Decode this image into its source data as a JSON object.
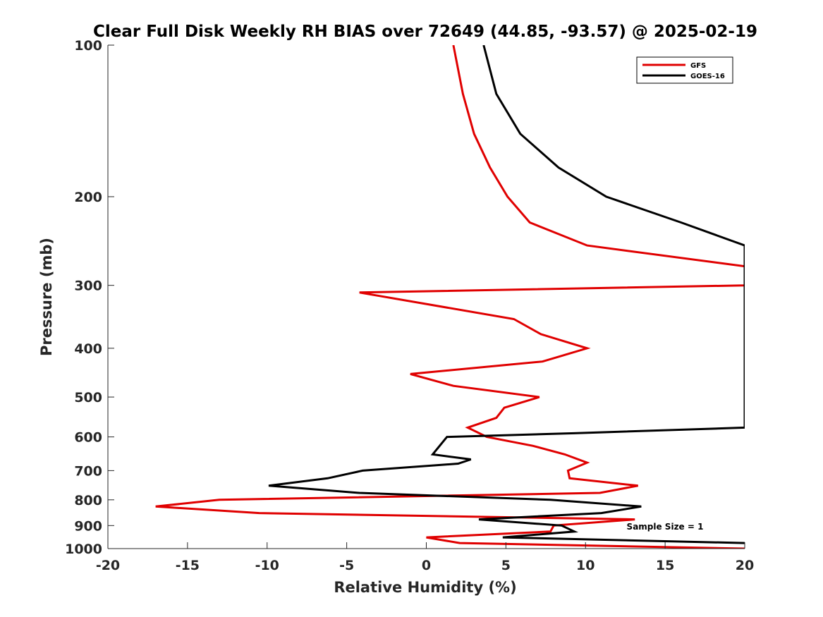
{
  "chart_data": {
    "type": "line",
    "title": "Clear Full Disk Weekly RH BIAS over 72649 (44.85, -93.57) @ 2025-02-19",
    "xlabel": "Relative Humidity (%)",
    "ylabel": "Pressure (mb)",
    "xlim": [
      -20,
      20
    ],
    "ylim": [
      1000,
      100
    ],
    "yscale": "log",
    "x_ticks": [
      "-20",
      "-15",
      "-10",
      "-5",
      "0",
      "5",
      "10",
      "15",
      "20"
    ],
    "y_ticks": [
      "100",
      "200",
      "300",
      "400",
      "500",
      "600",
      "700",
      "800",
      "900",
      "1000"
    ],
    "grid": false,
    "legend_position": "top-right",
    "annotation": "Sample Size = 1",
    "series": [
      {
        "name": "GFS",
        "color": "#e00000",
        "points": [
          [
            1.7,
            100
          ],
          [
            2.3,
            125
          ],
          [
            3.0,
            150
          ],
          [
            4.0,
            175
          ],
          [
            5.1,
            200
          ],
          [
            6.5,
            225
          ],
          [
            10.1,
            250
          ],
          [
            20.0,
            275
          ],
          [
            20.0,
            300
          ],
          [
            -4.2,
            310
          ],
          [
            5.5,
            350
          ],
          [
            7.2,
            375
          ],
          [
            10.1,
            400
          ],
          [
            7.3,
            425
          ],
          [
            -1.0,
            450
          ],
          [
            1.7,
            475
          ],
          [
            7.1,
            500
          ],
          [
            4.9,
            525
          ],
          [
            4.4,
            550
          ],
          [
            2.6,
            575
          ],
          [
            3.8,
            600
          ],
          [
            6.7,
            625
          ],
          [
            8.7,
            650
          ],
          [
            10.1,
            675
          ],
          [
            8.9,
            700
          ],
          [
            9.0,
            725
          ],
          [
            13.3,
            750
          ],
          [
            10.9,
            775
          ],
          [
            -13.0,
            800
          ],
          [
            -17.0,
            825
          ],
          [
            -10.5,
            850
          ],
          [
            13.1,
            875
          ],
          [
            8.0,
            900
          ],
          [
            7.8,
            925
          ],
          [
            0.0,
            950
          ],
          [
            2.1,
            975
          ],
          [
            20.0,
            1000
          ]
        ]
      },
      {
        "name": "GOES-16",
        "color": "#000000",
        "points": [
          [
            3.6,
            100
          ],
          [
            4.4,
            125
          ],
          [
            5.9,
            150
          ],
          [
            8.3,
            175
          ],
          [
            11.3,
            200
          ],
          [
            16.0,
            225
          ],
          [
            20.0,
            250
          ],
          [
            20.0,
            575
          ],
          [
            9.3,
            590
          ],
          [
            1.3,
            600
          ],
          [
            0.4,
            650
          ],
          [
            2.8,
            665
          ],
          [
            2.0,
            678
          ],
          [
            -4.0,
            700
          ],
          [
            -6.2,
            725
          ],
          [
            -9.9,
            750
          ],
          [
            -4.2,
            775
          ],
          [
            7.8,
            800
          ],
          [
            13.5,
            825
          ],
          [
            11.0,
            850
          ],
          [
            3.3,
            875
          ],
          [
            8.5,
            900
          ],
          [
            9.3,
            925
          ],
          [
            4.8,
            950
          ],
          [
            20.0,
            975
          ]
        ]
      }
    ]
  }
}
